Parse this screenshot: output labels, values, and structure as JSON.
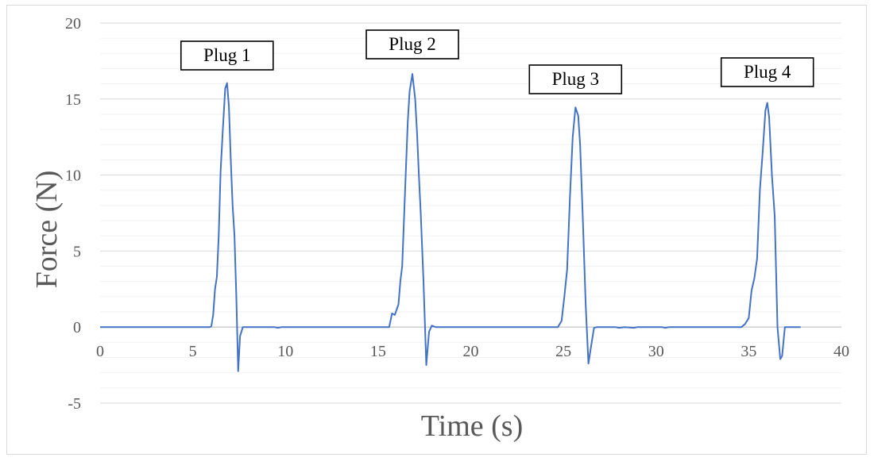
{
  "chart_data": {
    "type": "line",
    "title": "",
    "xlabel": "Time (s)",
    "ylabel": "Force (N)",
    "xlim": [
      0,
      40
    ],
    "ylim": [
      -5,
      20
    ],
    "x_ticks": [
      0,
      5,
      10,
      15,
      20,
      25,
      30,
      35,
      40
    ],
    "y_ticks": [
      -5,
      0,
      5,
      10,
      15,
      20
    ],
    "x_tick_labels": [
      "0",
      "5",
      "10",
      "15",
      "20",
      "25",
      "30",
      "35",
      "40"
    ],
    "y_tick_labels": [
      "-5",
      "0",
      "5",
      "10",
      "15",
      "20"
    ],
    "grid": true,
    "minor_grid": true,
    "legend": "none",
    "series_color": "#4472c4",
    "series": [
      {
        "points": [
          [
            0,
            0
          ],
          [
            5.9,
            0
          ],
          [
            6.0,
            0.05
          ],
          [
            6.1,
            0.8
          ],
          [
            6.2,
            2.5
          ],
          [
            6.3,
            3.3
          ],
          [
            6.4,
            6
          ],
          [
            6.5,
            10.2
          ],
          [
            6.6,
            12.5
          ],
          [
            6.75,
            15.7
          ],
          [
            6.85,
            16.05
          ],
          [
            6.95,
            14.5
          ],
          [
            7.05,
            11
          ],
          [
            7.15,
            8
          ],
          [
            7.25,
            6
          ],
          [
            7.35,
            2
          ],
          [
            7.45,
            -2.9
          ],
          [
            7.55,
            -0.6
          ],
          [
            7.7,
            0
          ],
          [
            9.4,
            0
          ],
          [
            9.6,
            -0.05
          ],
          [
            9.8,
            0
          ],
          [
            15.6,
            0
          ],
          [
            15.75,
            0.9
          ],
          [
            15.9,
            0.8
          ],
          [
            16.1,
            1.5
          ],
          [
            16.2,
            3
          ],
          [
            16.3,
            4
          ],
          [
            16.45,
            8.8
          ],
          [
            16.6,
            13.5
          ],
          [
            16.7,
            15.5
          ],
          [
            16.85,
            16.65
          ],
          [
            17.0,
            15
          ],
          [
            17.1,
            12.8
          ],
          [
            17.2,
            10
          ],
          [
            17.3,
            7.5
          ],
          [
            17.45,
            3
          ],
          [
            17.6,
            -2.5
          ],
          [
            17.75,
            -0.3
          ],
          [
            17.9,
            0.1
          ],
          [
            18.1,
            0
          ],
          [
            24.7,
            0
          ],
          [
            24.9,
            0.4
          ],
          [
            25.05,
            2
          ],
          [
            25.2,
            3.8
          ],
          [
            25.35,
            8.5
          ],
          [
            25.5,
            12.5
          ],
          [
            25.65,
            14.45
          ],
          [
            25.8,
            13.9
          ],
          [
            25.9,
            12
          ],
          [
            26.05,
            7
          ],
          [
            26.2,
            1.5
          ],
          [
            26.35,
            -2.4
          ],
          [
            26.5,
            -1.2
          ],
          [
            26.65,
            -0.05
          ],
          [
            26.8,
            0
          ],
          [
            27.8,
            0
          ],
          [
            28.0,
            -0.05
          ],
          [
            28.3,
            0
          ],
          [
            28.8,
            -0.05
          ],
          [
            29.0,
            0
          ],
          [
            30.3,
            0
          ],
          [
            30.5,
            -0.05
          ],
          [
            30.7,
            0
          ],
          [
            34.6,
            0
          ],
          [
            34.8,
            0.2
          ],
          [
            35.0,
            0.6
          ],
          [
            35.15,
            2.4
          ],
          [
            35.3,
            3.2
          ],
          [
            35.45,
            4.5
          ],
          [
            35.6,
            9
          ],
          [
            35.75,
            11.5
          ],
          [
            35.9,
            14.25
          ],
          [
            36.0,
            14.75
          ],
          [
            36.1,
            13.8
          ],
          [
            36.25,
            10
          ],
          [
            36.4,
            7.3
          ],
          [
            36.55,
            0
          ],
          [
            36.7,
            -2.1
          ],
          [
            36.8,
            -1.9
          ],
          [
            36.95,
            0
          ],
          [
            37.8,
            0
          ]
        ]
      }
    ],
    "annotations": [
      {
        "text": "Plug 1",
        "x": 6.85
      },
      {
        "text": "Plug 2",
        "x": 16.85
      },
      {
        "text": "Plug 3",
        "x": 25.65
      },
      {
        "text": "Plug 4",
        "x": 36.0
      }
    ]
  }
}
